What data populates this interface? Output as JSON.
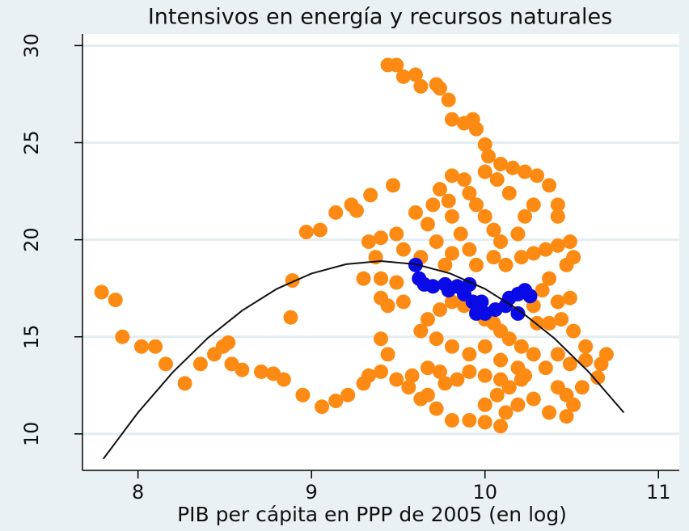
{
  "chart_data": {
    "type": "scatter",
    "title": "Intensivos en energía y recursos naturales",
    "x_label": "PIB per cápita en PPP de 2005 (en log)",
    "xlim": [
      7.68,
      11.12
    ],
    "ylim": [
      8.12,
      30.6
    ],
    "xticks": [
      8,
      9,
      10,
      11
    ],
    "yticks": [
      10,
      15,
      20,
      25,
      30
    ],
    "grid": true,
    "series": [
      {
        "color": "#fd8a12",
        "x": [
          7.79,
          7.87,
          7.91,
          8.02,
          8.1,
          8.16,
          8.27,
          8.36,
          8.44,
          8.49,
          8.52,
          8.54,
          8.6,
          8.71,
          8.78,
          8.84,
          8.88,
          8.89,
          8.95,
          8.97,
          9.05,
          9.06,
          9.14,
          9.21,
          9.14,
          9.23,
          9.26,
          9.34,
          9.47,
          9.3,
          9.44,
          9.49,
          9.53,
          9.6,
          9.63,
          9.72,
          9.74,
          9.79,
          9.81,
          9.88,
          9.93,
          9.95,
          10.0,
          10.02,
          10.09,
          10.16,
          10.23,
          10.3,
          10.37,
          10.42,
          10.42,
          9.33,
          9.4,
          9.49,
          9.37,
          9.3,
          9.4,
          9.49,
          9.4,
          9.53,
          9.44,
          9.53,
          9.63,
          9.6,
          9.67,
          9.72,
          9.7,
          9.79,
          9.74,
          9.81,
          9.88,
          9.91,
          9.95,
          10.0,
          10.05,
          10.09,
          10.19,
          10.23,
          10.28,
          10.14,
          10.07,
          10.0,
          9.81,
          9.86,
          9.91,
          9.81,
          9.77,
          9.95,
          10.05,
          10.12,
          10.21,
          10.28,
          10.35,
          10.42,
          10.49,
          10.51,
          10.47,
          10.37,
          10.33,
          10.42,
          10.49,
          10.28,
          9.4,
          9.44,
          9.4,
          9.33,
          9.49,
          9.56,
          9.58,
          9.67,
          9.74,
          9.77,
          9.67,
          9.63,
          9.72,
          9.81,
          9.91,
          10.0,
          10.09,
          10.0,
          10.07,
          10.14,
          10.21,
          10.28,
          10.37,
          10.47,
          10.51,
          10.56,
          10.65,
          10.67,
          10.58,
          10.49,
          10.42,
          10.35,
          10.28,
          10.21,
          10.14,
          10.09,
          10.05,
          10.0,
          9.95,
          9.88,
          9.81,
          9.74,
          9.67,
          9.63,
          9.72,
          9.81,
          9.91,
          10.0,
          10.09,
          10.19,
          10.23,
          9.91,
          9.84,
          10.0,
          10.09,
          10.19,
          10.12,
          10.42,
          10.47,
          10.7,
          10.58,
          10.51,
          10.44,
          10.37,
          10.3
        ],
        "y": [
          17.3,
          16.9,
          15.0,
          14.5,
          14.5,
          13.6,
          12.6,
          13.6,
          14.1,
          14.5,
          14.7,
          13.6,
          13.3,
          13.2,
          13.1,
          12.8,
          16.0,
          17.9,
          12.0,
          20.4,
          20.5,
          11.4,
          11.7,
          12.0,
          21.4,
          21.8,
          21.5,
          22.3,
          22.8,
          12.6,
          29.0,
          29.0,
          28.4,
          28.5,
          27.9,
          28.0,
          27.8,
          27.2,
          26.2,
          26.0,
          26.2,
          25.7,
          24.9,
          24.3,
          23.9,
          23.7,
          23.5,
          23.3,
          22.8,
          21.8,
          21.2,
          19.9,
          20.1,
          20.3,
          19.1,
          18.0,
          18.0,
          17.8,
          17.0,
          16.8,
          16.6,
          19.5,
          19.1,
          21.4,
          20.8,
          19.9,
          21.8,
          22.0,
          22.6,
          23.3,
          23.1,
          22.4,
          21.8,
          21.2,
          20.5,
          19.9,
          20.3,
          21.2,
          21.8,
          22.4,
          23.1,
          23.5,
          21.2,
          20.3,
          19.5,
          19.3,
          18.7,
          18.7,
          19.1,
          18.7,
          19.1,
          19.3,
          19.5,
          19.7,
          19.9,
          19.1,
          18.7,
          18.0,
          17.4,
          16.8,
          17.0,
          16.6,
          14.9,
          14.1,
          13.2,
          13.0,
          12.8,
          12.4,
          13.0,
          13.4,
          13.2,
          12.6,
          12.0,
          11.8,
          11.3,
          10.7,
          10.7,
          10.6,
          10.4,
          11.5,
          12.0,
          12.4,
          12.8,
          11.8,
          11.1,
          10.9,
          11.5,
          12.4,
          12.9,
          13.6,
          13.8,
          13.6,
          14.1,
          13.4,
          14.1,
          14.5,
          14.9,
          15.3,
          15.7,
          15.9,
          16.4,
          16.6,
          16.8,
          16.4,
          15.9,
          15.3,
          14.9,
          14.5,
          14.1,
          14.5,
          13.8,
          13.4,
          13.0,
          13.2,
          12.8,
          13.0,
          12.8,
          11.5,
          11.1,
          12.4,
          12.0,
          14.1,
          14.5,
          15.3,
          15.9,
          15.7,
          15.7
        ]
      },
      {
        "color": "#0a0ae6",
        "x": [
          9.6,
          9.62,
          9.65,
          9.7,
          9.77,
          9.79,
          9.84,
          9.91,
          9.88,
          9.93,
          9.98,
          9.95,
          10.0,
          10.06,
          10.12,
          10.14,
          10.19,
          10.23,
          10.26,
          10.19
        ],
        "y": [
          18.7,
          18.0,
          17.7,
          17.6,
          17.7,
          17.4,
          17.6,
          17.7,
          17.2,
          16.8,
          16.8,
          16.2,
          16.2,
          16.4,
          16.6,
          17.0,
          17.2,
          17.4,
          17.1,
          16.2
        ]
      },
      {
        "type": "line",
        "color": "#111111",
        "x": [
          7.8,
          8.0,
          8.2,
          8.4,
          8.6,
          8.8,
          9.0,
          9.2,
          9.4,
          9.6,
          9.8,
          10.0,
          10.2,
          10.4,
          10.6,
          10.8
        ],
        "y": [
          8.71,
          11.1,
          13.17,
          14.92,
          16.35,
          17.47,
          18.26,
          18.74,
          18.9,
          18.74,
          18.26,
          17.47,
          16.35,
          14.92,
          13.17,
          11.1
        ]
      }
    ]
  }
}
